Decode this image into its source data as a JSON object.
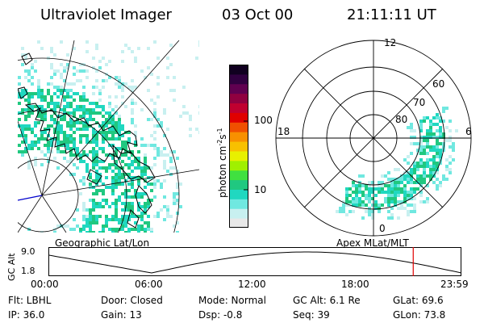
{
  "header": {
    "instrument": "Ultraviolet Imager",
    "date": "03 Oct 00",
    "time": "21:11:11 UT"
  },
  "left_panel": {
    "label": "Geographic Lat/Lon"
  },
  "right_panel": {
    "label": "Apex MLat/MLT",
    "mlt_labels": [
      "12",
      "18",
      "6",
      "0"
    ],
    "lat_labels": [
      "60",
      "70",
      "80"
    ]
  },
  "colorbar": {
    "unit_label": "photon cm",
    "exp1": "-2",
    "unit_s": "s",
    "exp2": "-1",
    "ticks": [
      "100",
      "10"
    ],
    "colors": [
      "#e8e8e8",
      "#c8f0f0",
      "#70e8e0",
      "#20d8c0",
      "#20c880",
      "#40e040",
      "#a0f000",
      "#e8f000",
      "#f8c000",
      "#f89000",
      "#f05000",
      "#e00000",
      "#c00030",
      "#900040",
      "#600050",
      "#300040",
      "#100020"
    ]
  },
  "altitude_plot": {
    "y_label": "GC Alt",
    "y_ticks": [
      "9.0",
      "1.8"
    ],
    "x_ticks": [
      "00:00",
      "06:00",
      "12:00",
      "18:00",
      "23:59"
    ],
    "marker_hour": 21.2,
    "marker_color": "#e00000"
  },
  "status": {
    "flt": "Flt: LBHL",
    "ip": "IP: 36.0",
    "door": "Door: Closed",
    "gain": "Gain: 13",
    "mode": "Mode: Normal",
    "dsp": "Dsp:   -0.8",
    "gc_alt": "GC Alt: 6.1 Re",
    "seq": "Seq: 39",
    "glat": "GLat:  69.6",
    "glon": "GLon:  73.8"
  }
}
